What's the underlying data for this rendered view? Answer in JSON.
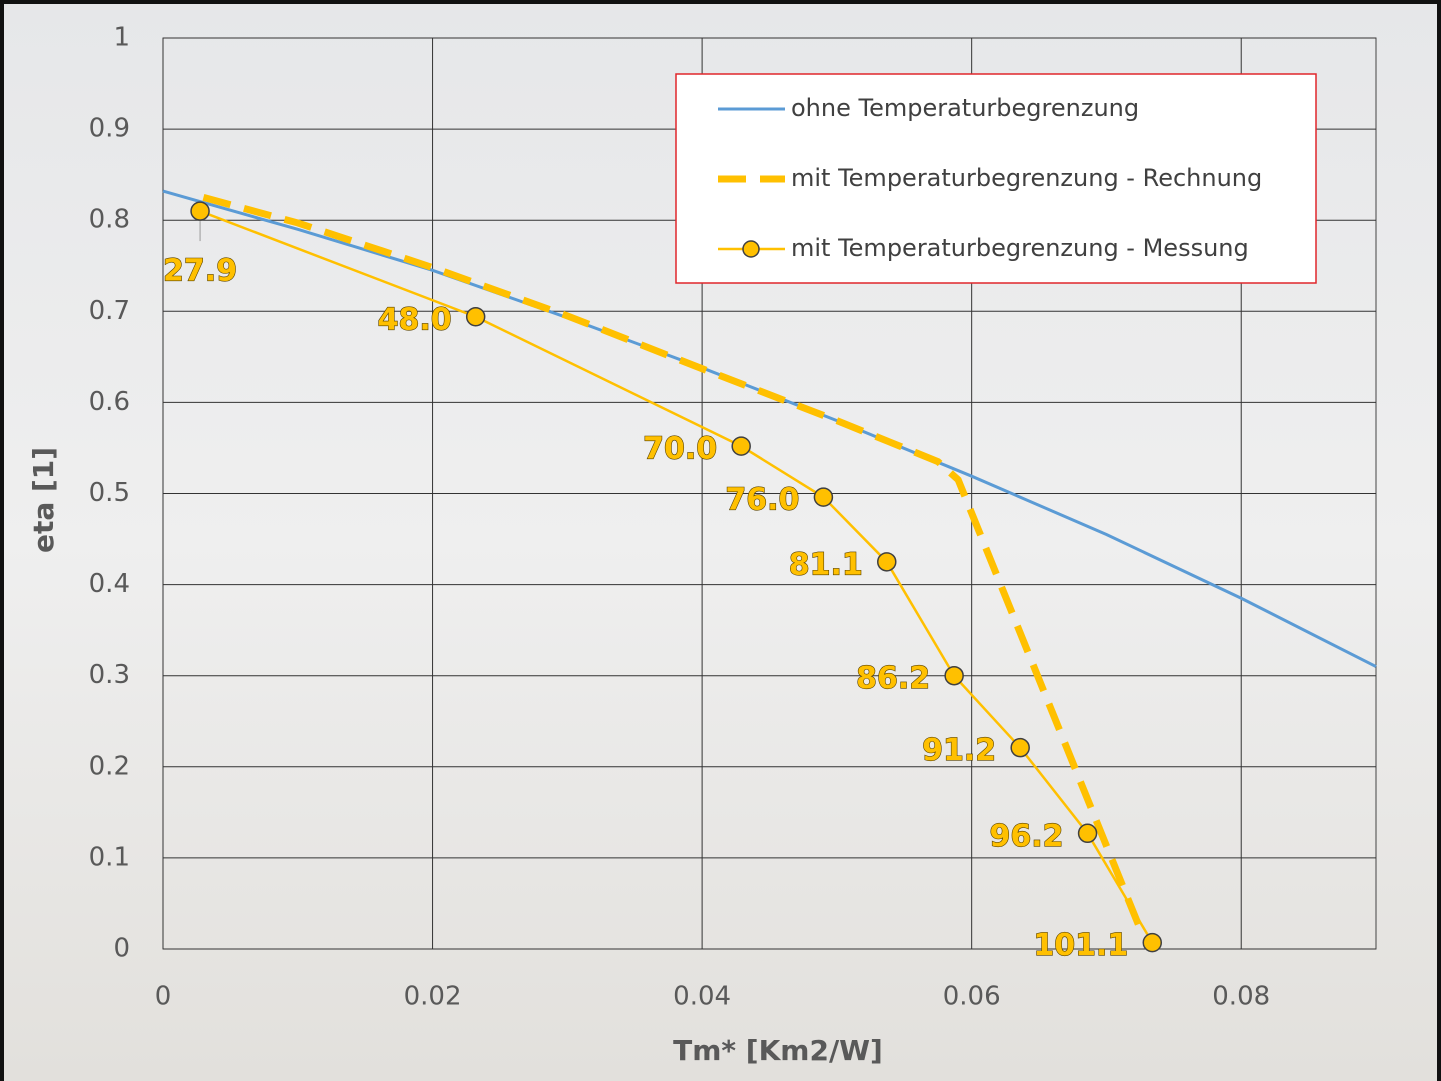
{
  "chart_data": {
    "type": "line",
    "x_label": "Tm* [Km2/W]",
    "y_label": "eta [1]",
    "xlim": [
      0,
      0.09
    ],
    "xticks": [
      0,
      0.02,
      0.04,
      0.06,
      0.08
    ],
    "ylim": [
      0,
      1
    ],
    "yticks": [
      0,
      0.1,
      0.2,
      0.3,
      0.4,
      0.5,
      0.6,
      0.7,
      0.8,
      0.9,
      1
    ],
    "grid": true,
    "legend": "top-right",
    "series": [
      {
        "name": "ohne Temperaturbegrenzung",
        "color": "#5b9bd5",
        "style": "solid",
        "x": [
          0,
          0.01,
          0.02,
          0.03,
          0.04,
          0.05,
          0.06,
          0.07,
          0.08,
          0.09
        ],
        "values": [
          0.832,
          0.79,
          0.745,
          0.693,
          0.638,
          0.58,
          0.519,
          0.455,
          0.385,
          0.31
        ]
      },
      {
        "name": "mit Temperaturbegrenzung - Rechnung",
        "color": "#ffc000",
        "style": "dashed",
        "x": [
          0.003,
          0.01,
          0.02,
          0.03,
          0.04,
          0.05,
          0.0575,
          0.059,
          0.0725
        ],
        "values": [
          0.825,
          0.797,
          0.748,
          0.695,
          0.637,
          0.58,
          0.535,
          0.515,
          0.022
        ]
      },
      {
        "name": "mit Temperaturbegrenzung - Messung",
        "color": "#ffc000",
        "style": "markers",
        "x": [
          0.00275,
          0.0232,
          0.0429,
          0.049,
          0.0537,
          0.0587,
          0.0636,
          0.0686,
          0.0734
        ],
        "values": [
          0.81,
          0.694,
          0.552,
          0.496,
          0.425,
          0.3,
          0.221,
          0.127,
          0.007
        ],
        "point_labels": [
          "27.9",
          "48.0",
          "70.0",
          "76.0",
          "81.1",
          "86.2",
          "91.2",
          "96.2",
          "101.1"
        ]
      }
    ]
  }
}
